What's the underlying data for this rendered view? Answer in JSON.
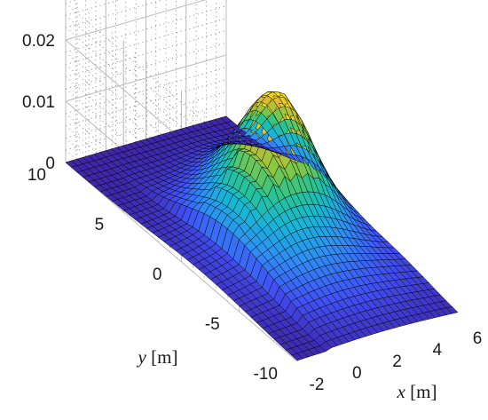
{
  "chart_data": {
    "type": "surface",
    "title": "",
    "xlabel_var": "x",
    "xlabel_unit": "[m]",
    "ylabel_var": "y",
    "ylabel_unit": "[m]",
    "zlabel": "",
    "xlim": [
      -2,
      6
    ],
    "ylim": [
      -10,
      10
    ],
    "zlim": [
      0,
      0.028
    ],
    "x_ticks": [
      "-2",
      "0",
      "2",
      "4",
      "6"
    ],
    "y_ticks": [
      "10",
      "5",
      "0",
      "-5",
      "-10"
    ],
    "z_ticks": [
      "0",
      "0.01",
      "0.02"
    ],
    "grid": true,
    "colormap": [
      "#3e26a8",
      "#4150f5",
      "#2f8ef5",
      "#17b6d6",
      "#29c48e",
      "#8cc73f",
      "#e1b92f",
      "#f9e01f"
    ],
    "edge_color": "#000000",
    "features": [
      {
        "x": 4.0,
        "y": 2.0,
        "peak": 0.016
      },
      {
        "x": 2.0,
        "y": 0.5,
        "peak": 0.007
      },
      {
        "x": 0.0,
        "y": -1.0,
        "peak": 0.003
      }
    ]
  }
}
